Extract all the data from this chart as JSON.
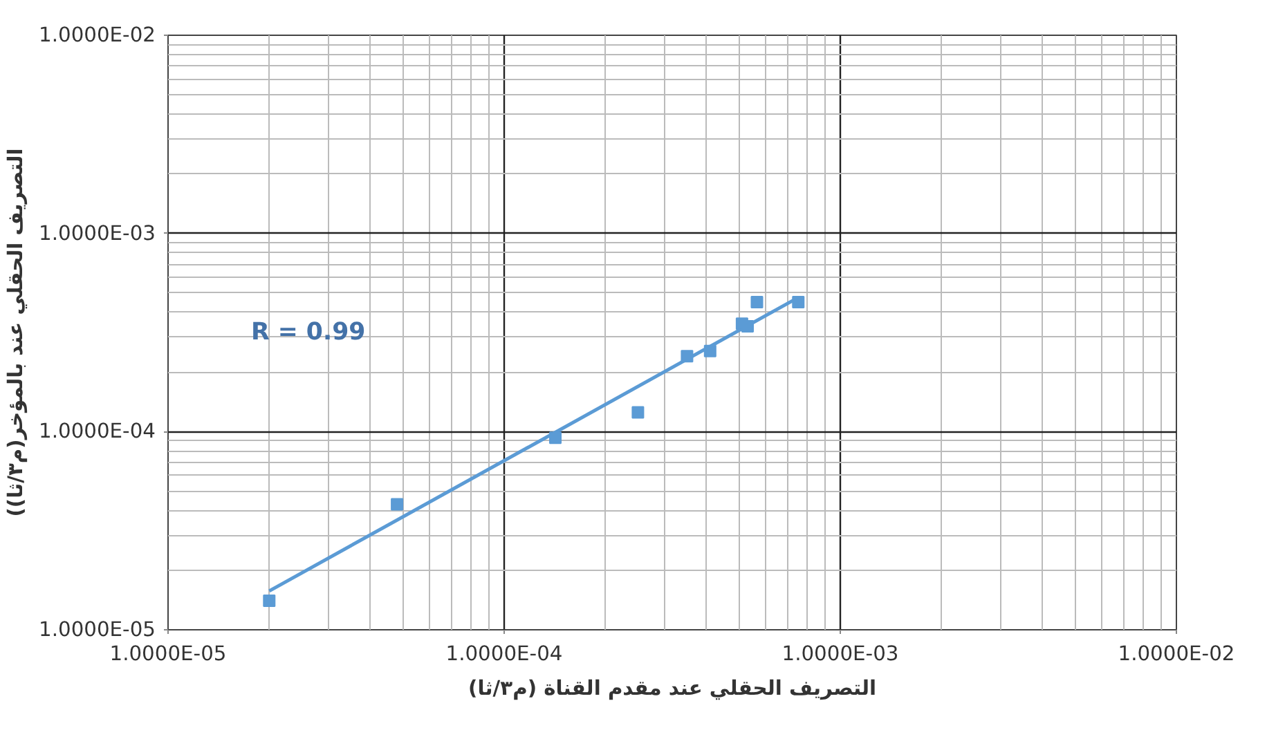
{
  "chart_data": {
    "type": "scatter",
    "xlabel": "(م٣/ثا) التصريف الحقلي عند مقدم القناة",
    "ylabel": "(التصريف الحقلي عند بالمؤخر(م٣/ثا)",
    "series": [
      {
        "type": "line",
        "color": "#5b9bd5",
        "marker": "none",
        "x": [
          2e-05,
          0.00075
        ],
        "values": [
          1.57e-05,
          0.000475
        ]
      },
      {
        "color": "#5b9bd5",
        "marker": "square",
        "x": [
          2e-05,
          4.8e-05,
          0.000142,
          0.00025,
          0.00035,
          0.00041,
          0.00051,
          0.00053,
          0.000565,
          0.00075
        ],
        "values": [
          1.4e-05,
          4.3e-05,
          9.3e-05,
          0.000125,
          0.00024,
          0.000255,
          0.00035,
          0.00034,
          0.00045,
          0.00045
        ]
      }
    ],
    "log": "xy",
    "grid": true,
    "xlim": [
      1e-05,
      0.01
    ],
    "ylim": [
      1e-05,
      0.01
    ],
    "xticks": [
      {
        "value": 1e-05,
        "label": "1.0000E-05"
      },
      {
        "value": 0.0001,
        "label": "1.0000E-04"
      },
      {
        "value": 0.001,
        "label": "1.0000E-03"
      },
      {
        "value": 0.01,
        "label": "1.0000E-02"
      }
    ],
    "yticks": [
      {
        "value": 1e-05,
        "label": "1.0000E-05"
      },
      {
        "value": 0.0001,
        "label": "1.0000E-04"
      },
      {
        "value": 0.001,
        "label": "1.0000E-03"
      },
      {
        "value": 0.01,
        "label": "1.0000E-02"
      }
    ],
    "annotations": [
      "R = 0.99"
    ]
  }
}
